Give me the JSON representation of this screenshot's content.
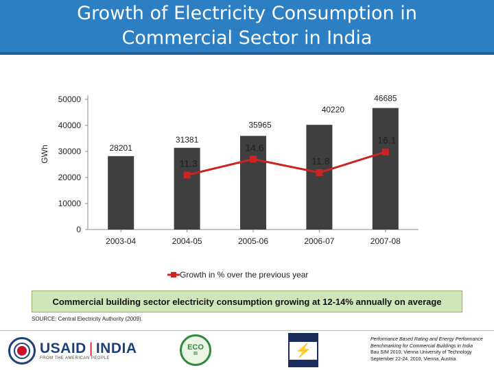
{
  "title": {
    "line1": "Growth of Electricity Consumption in",
    "line2": "Commercial Sector in India"
  },
  "colors": {
    "title_bar": "#2c7fc2",
    "bars": "#3f3f3f",
    "growth_line": "#cc2222",
    "banner": "#cfe6b8"
  },
  "chart_data": {
    "type": "bar",
    "categories": [
      "2003-04",
      "2004-05",
      "2005-06",
      "2006-07",
      "2007-08"
    ],
    "bar_series": {
      "values": [
        28201,
        31381,
        35965,
        40220,
        46685
      ],
      "labels": [
        "28201",
        "31381",
        "35965",
        "40220",
        "46685"
      ]
    },
    "line_series": {
      "name": "Growth in % over the previous year",
      "values": [
        null,
        11.3,
        14.6,
        11.8,
        16.1
      ],
      "labels": [
        "",
        "11.3",
        "14.6",
        "11.8",
        "16.1"
      ]
    },
    "ylabel": "GWh",
    "ylim": [
      0,
      50000
    ],
    "y_ticks": [
      "0",
      "10000",
      "20000",
      "30000",
      "40000",
      "50000"
    ],
    "y_tick_values": [
      0,
      10000,
      20000,
      30000,
      40000,
      50000
    ],
    "line_scale": "secondary scale ~ 0-27 %, not printed",
    "grid": false,
    "legend_placement": "bottom"
  },
  "banner": "Commercial building sector electricity consumption growing at 12-14% annually on average",
  "source": "SOURCE: Central Electricity Authority (2009).",
  "logos": {
    "usaid": "USAID",
    "india": "INDIA",
    "usaid_tagline": "FROM THE AMERICAN PEOPLE",
    "eco": "ECO",
    "eco_sub": "III"
  },
  "credit": {
    "line1": "Performance Based Rating and Energy Performance Benchmarking for Commercial Buildings in India",
    "line2": "Bau SIM 2010, Vienna University of Technology",
    "line3": "September 22-24, 2010, Vienna, Austria."
  }
}
